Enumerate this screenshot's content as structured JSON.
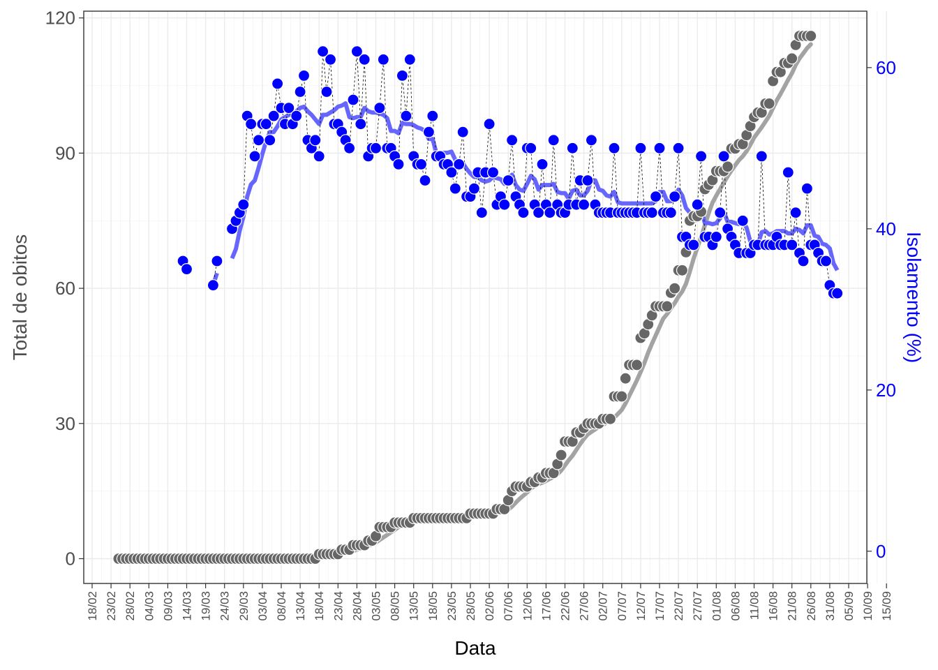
{
  "chart_data": {
    "type": "line",
    "xlabel": "Data",
    "ylabel_left": "Total de obitos",
    "ylabel_right": "Isolamento (%)",
    "ylim_left": [
      -5.5,
      121.5
    ],
    "ylim_right": [
      -4,
      67
    ],
    "yticks_left": [
      0,
      30,
      60,
      90,
      120
    ],
    "yticks_right": [
      0,
      20,
      40,
      60
    ],
    "x_ticks": [
      "18/02",
      "23/02",
      "28/02",
      "04/03",
      "09/03",
      "14/03",
      "19/03",
      "24/03",
      "29/03",
      "03/04",
      "08/04",
      "13/04",
      "18/04",
      "23/04",
      "28/04",
      "03/05",
      "08/05",
      "13/05",
      "18/05",
      "23/05",
      "28/05",
      "02/06",
      "07/06",
      "12/06",
      "17/06",
      "22/06",
      "27/06",
      "02/07",
      "07/07",
      "12/07",
      "17/07",
      "22/07",
      "27/07",
      "01/08",
      "06/08",
      "11/08",
      "16/08",
      "21/08",
      "26/08",
      "31/08",
      "05/09",
      "10/09",
      "15/09"
    ],
    "series_ranges": {
      "obitos": {
        "start": "25/02",
        "end": "05/09"
      },
      "isolamento": {
        "start": "04/03",
        "end": "05/09"
      }
    },
    "colors": {
      "obitos": "#666666",
      "obitos_trend": "#a3a3a3",
      "isolamento": "#0000ff",
      "isolamento_trend": "#6666ff",
      "grid": "#ebebeb",
      "axis_left": "#4d4d4d",
      "axis_right": "#0000ff"
    },
    "grid": true,
    "series": [
      {
        "values": [
          0,
          0,
          0,
          0,
          0,
          0,
          0,
          0,
          0,
          0,
          0,
          0,
          0,
          0,
          0,
          0,
          0,
          0,
          0,
          0,
          0,
          0,
          0,
          0,
          0,
          0,
          0,
          0,
          0,
          0,
          0,
          0,
          0,
          0,
          0,
          0,
          0,
          0,
          0,
          0,
          0,
          0,
          0,
          0,
          0,
          0,
          0,
          0,
          0,
          0,
          0,
          0,
          0,
          1,
          1,
          1,
          1,
          1,
          1,
          2,
          2,
          2,
          3,
          3,
          3,
          3,
          4,
          4,
          5,
          7,
          7,
          7,
          7,
          8,
          8,
          8,
          8,
          8,
          9,
          9,
          9,
          9,
          9,
          9,
          9,
          9,
          9,
          9,
          9,
          9,
          9,
          9,
          9,
          10,
          10,
          10,
          10,
          10,
          10,
          10,
          11,
          11,
          11,
          13,
          15,
          16,
          16,
          16,
          16,
          17,
          17,
          18,
          18,
          19,
          19,
          19,
          21,
          23,
          26,
          26,
          26,
          28,
          28,
          29,
          30,
          30,
          30,
          30,
          31,
          31,
          31,
          36,
          36,
          36,
          40,
          43,
          43,
          43,
          49,
          50,
          52,
          54,
          56,
          56,
          56,
          56,
          59,
          60,
          64,
          64,
          68,
          75,
          76,
          76,
          77,
          82,
          83,
          84,
          86,
          86,
          86,
          87,
          91,
          91,
          92,
          92,
          94,
          96,
          98,
          99,
          99,
          101,
          101,
          106,
          108,
          108,
          110,
          110,
          111,
          114,
          116,
          116,
          116,
          116
        ]
      },
      {
        "values": [
          null,
          null,
          null,
          null,
          null,
          null,
          null,
          null,
          null,
          36,
          35,
          null,
          null,
          null,
          null,
          null,
          null,
          33,
          36,
          null,
          null,
          null,
          40,
          41,
          42,
          43,
          54,
          53,
          49,
          51,
          53,
          53,
          51,
          54,
          58,
          55,
          53,
          55,
          53,
          54,
          57,
          59,
          51,
          50,
          51,
          49,
          62,
          57,
          61,
          53,
          53,
          52,
          51,
          50,
          56,
          62,
          53,
          61,
          49,
          50,
          50,
          55,
          61,
          50,
          50,
          49,
          48,
          59,
          54,
          61,
          49,
          48,
          48,
          46,
          52,
          54,
          49,
          49,
          48,
          48,
          47,
          45,
          48,
          52,
          44,
          44,
          45,
          47,
          42,
          47,
          53,
          47,
          43,
          44,
          43,
          46,
          51,
          44,
          43,
          42,
          50,
          50,
          43,
          42,
          48,
          43,
          42,
          51,
          43,
          42,
          42,
          43,
          50,
          43,
          46,
          43,
          46,
          51,
          43,
          42,
          42,
          42,
          42,
          50,
          42,
          42,
          42,
          42,
          42,
          42,
          50,
          42,
          42,
          42,
          44,
          50,
          42,
          42,
          42,
          44,
          50,
          39,
          39,
          38,
          38,
          43,
          49,
          39,
          39,
          38,
          39,
          42,
          49,
          40,
          39,
          38,
          37,
          41,
          37,
          37,
          38,
          38,
          49,
          38,
          38,
          38,
          39,
          38,
          38,
          47,
          38,
          42,
          37,
          36,
          45,
          38,
          38,
          37,
          36,
          36,
          33,
          32,
          32
        ]
      }
    ]
  }
}
